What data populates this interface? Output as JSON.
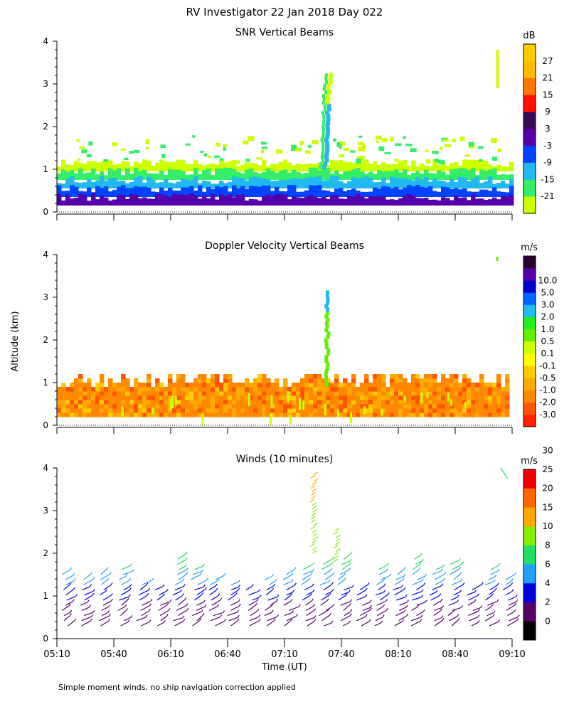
{
  "main_title": "RV Investigator  22 Jan 2018 Day 022",
  "y_axis_label": "Altitude (km)",
  "x_axis_label": "Time (UT)",
  "footnote": "Simple moment winds, no ship navigation correction applied",
  "chart_data": [
    {
      "type": "heatmap",
      "title": "SNR Vertical Beams",
      "ylim": [
        0,
        4
      ],
      "y_ticks": [
        "0",
        "1",
        "2",
        "3",
        "4"
      ],
      "colorbar": {
        "unit": "dB",
        "labels": [
          "-21",
          "-15",
          "-9",
          "-3",
          "3",
          "9",
          "15",
          "21",
          "27"
        ],
        "colors": [
          "#ccff00",
          "#33ee66",
          "#22b8f0",
          "#0044ff",
          "#5500aa",
          "#3a0a55",
          "#ff1100",
          "#ff7700",
          "#ffbb00",
          "#ffcc00"
        ]
      }
    },
    {
      "type": "heatmap",
      "title": "Doppler Velocity Vertical Beams",
      "ylim": [
        0,
        4
      ],
      "y_ticks": [
        "0",
        "1",
        "2",
        "3",
        "4"
      ],
      "colorbar": {
        "unit": "m/s",
        "labels": [
          "-3.0",
          "-2.0",
          "-1.0",
          "-0.5",
          "-0.1",
          "0.1",
          "0.5",
          "1.0",
          "2.0",
          "3.0",
          "5.0",
          "10.0"
        ],
        "colors": [
          "#ff2200",
          "#ff5500",
          "#ff8800",
          "#ffaa00",
          "#ffcc00",
          "#ffff00",
          "#ccff00",
          "#66ee00",
          "#22ee22",
          "#22bbee",
          "#0066ff",
          "#0000cc",
          "#5500aa",
          "#2a0030"
        ]
      }
    },
    {
      "type": "scatter",
      "title": "Winds (10 minutes)",
      "ylim": [
        0,
        4
      ],
      "y_ticks": [
        "0",
        "1",
        "2",
        "3",
        "4"
      ],
      "x_ticks": [
        "05:10",
        "05:40",
        "06:10",
        "06:40",
        "07:10",
        "07:40",
        "08:10",
        "08:40",
        "09:10"
      ],
      "colorbar": {
        "unit": "m/s",
        "labels": [
          "0",
          "2",
          "4",
          "6",
          "8",
          "10",
          "15",
          "20",
          "25",
          "30"
        ],
        "colors": [
          "#000000",
          "#550066",
          "#0000dd",
          "#1f9fff",
          "#22dd66",
          "#88ee00",
          "#ffaa00",
          "#ff6600",
          "#ee0000"
        ]
      }
    }
  ]
}
